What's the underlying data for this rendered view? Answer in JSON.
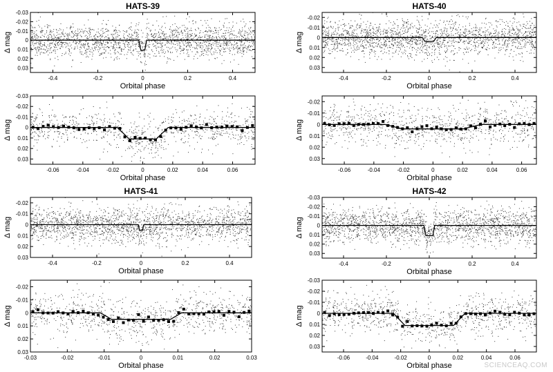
{
  "figure": {
    "watermark": "SCIENCEAQ.COM"
  },
  "chart_data": [
    {
      "type": "scatter",
      "title": "HATS-39",
      "xlabel": "Orbital phase",
      "ylabel": "Δ mag",
      "xlim": [
        -0.5,
        0.5
      ],
      "ylim": [
        -0.03,
        0.035
      ],
      "xticks": [
        -0.4,
        -0.2,
        0,
        0.2,
        0.4
      ],
      "xticklabels": [
        "-0.4",
        "-0.2",
        "0",
        "0.2",
        "0.4"
      ],
      "yticks": [
        -0.03,
        -0.02,
        -0.01,
        0,
        0.01,
        0.02,
        0.03
      ],
      "yticklabels": [
        "-0.03",
        "-0.02",
        "-0.01",
        "0",
        "0.01",
        "0.02",
        "0.03"
      ],
      "model": {
        "depth": 0.011,
        "t14": 0.034,
        "t12": 0.008
      },
      "scatter_sigma": 0.009,
      "binned": false,
      "grid": false
    },
    {
      "type": "scatter",
      "title": "HATS-40",
      "xlabel": "Orbital phase",
      "ylabel": "Δ mag",
      "xlim": [
        -0.5,
        0.5
      ],
      "ylim": [
        -0.025,
        0.035
      ],
      "xticks": [
        -0.4,
        -0.2,
        0,
        0.2,
        0.4
      ],
      "xticklabels": [
        "-0.4",
        "-0.2",
        "0",
        "0.2",
        "0.4"
      ],
      "yticks": [
        -0.02,
        -0.01,
        0,
        0.01,
        0.02,
        0.03
      ],
      "yticklabels": [
        "-0.02",
        "-0.01",
        "0",
        "0.01",
        "0.02",
        "0.03"
      ],
      "model": {
        "depth": 0.004,
        "t14": 0.065,
        "t12": 0.012
      },
      "scatter_sigma": 0.009,
      "binned": false,
      "grid": false
    },
    {
      "type": "scatter",
      "title": "",
      "xlabel": "Orbital phase",
      "ylabel": "Δ mag",
      "xlim": [
        -0.075,
        0.075
      ],
      "ylim": [
        -0.03,
        0.035
      ],
      "xticks": [
        -0.06,
        -0.04,
        -0.02,
        0,
        0.02,
        0.04,
        0.06
      ],
      "xticklabels": [
        "-0.06",
        "-0.04",
        "-0.02",
        "0",
        "0.02",
        "0.04",
        "0.06"
      ],
      "yticks": [
        -0.03,
        -0.02,
        -0.01,
        0,
        0.01,
        0.02,
        0.03
      ],
      "yticklabels": [
        "-0.03",
        "-0.02",
        "-0.01",
        "0",
        "0.01",
        "0.02",
        "0.03"
      ],
      "model": {
        "depth": 0.011,
        "t14": 0.034,
        "t12": 0.008
      },
      "scatter_sigma": 0.009,
      "binned": true,
      "grid": false
    },
    {
      "type": "scatter",
      "title": "",
      "xlabel": "Orbital phase",
      "ylabel": "Δ mag",
      "xlim": [
        -0.075,
        0.07
      ],
      "ylim": [
        -0.025,
        0.035
      ],
      "xticks": [
        -0.06,
        -0.04,
        -0.02,
        0,
        0.02,
        0.04,
        0.06
      ],
      "xticklabels": [
        "-0.06",
        "-0.04",
        "-0.02",
        "0",
        "0.02",
        "0.04",
        "0.06"
      ],
      "yticks": [
        -0.02,
        -0.01,
        0,
        0.01,
        0.02,
        0.03
      ],
      "yticklabels": [
        "-0.02",
        "-0.01",
        "0",
        "0.01",
        "0.02",
        "0.03"
      ],
      "model": {
        "depth": 0.004,
        "t14": 0.065,
        "t12": 0.012
      },
      "scatter_sigma": 0.009,
      "binned": true,
      "grid": false
    },
    {
      "type": "scatter",
      "title": "HATS-41",
      "xlabel": "Orbital phase",
      "ylabel": "Δ mag",
      "xlim": [
        -0.5,
        0.5
      ],
      "ylim": [
        -0.025,
        0.03
      ],
      "xticks": [
        -0.4,
        -0.2,
        0,
        0.2,
        0.4
      ],
      "xticklabels": [
        "-0.4",
        "-0.2",
        "0",
        "0.2",
        "0.4"
      ],
      "yticks": [
        -0.02,
        -0.01,
        0,
        0.01,
        0.02,
        0.03
      ],
      "yticklabels": [
        "-0.02",
        "-0.01",
        "0",
        "0.01",
        "0.02",
        "0.03"
      ],
      "model": {
        "depth": 0.005,
        "t14": 0.022,
        "t12": 0.003
      },
      "scatter_sigma": 0.008,
      "binned": false,
      "grid": false
    },
    {
      "type": "scatter",
      "title": "HATS-42",
      "xlabel": "Orbital phase",
      "ylabel": "Δ mag",
      "xlim": [
        -0.5,
        0.5
      ],
      "ylim": [
        -0.03,
        0.035
      ],
      "xticks": [
        -0.4,
        -0.2,
        0,
        0.2,
        0.4
      ],
      "xticklabels": [
        "-0.4",
        "-0.2",
        "0",
        "0.2",
        "0.4"
      ],
      "yticks": [
        -0.03,
        -0.02,
        -0.01,
        0,
        0.01,
        0.02,
        0.03
      ],
      "yticklabels": [
        "-0.03",
        "-0.02",
        "-0.01",
        "0",
        "0.01",
        "0.02",
        "0.03"
      ],
      "model": {
        "depth": 0.011,
        "t14": 0.05,
        "t12": 0.008
      },
      "scatter_sigma": 0.009,
      "binned": false,
      "grid": false
    },
    {
      "type": "scatter",
      "title": "",
      "xlabel": "Orbital phase",
      "ylabel": "Δ mag",
      "xlim": [
        -0.03,
        0.03
      ],
      "ylim": [
        -0.025,
        0.03
      ],
      "xticks": [
        -0.03,
        -0.02,
        -0.01,
        0,
        0.01,
        0.02,
        0.03
      ],
      "xticklabels": [
        "-0.03",
        "-0.02",
        "-0.01",
        "0",
        "0.01",
        "0.02",
        "0.03"
      ],
      "yticks": [
        -0.02,
        -0.01,
        0,
        0.01,
        0.02,
        0.03
      ],
      "yticklabels": [
        "-0.02",
        "-0.01",
        "0",
        "0.01",
        "0.02",
        "0.03"
      ],
      "model": {
        "depth": 0.005,
        "t14": 0.022,
        "t12": 0.003
      },
      "scatter_sigma": 0.008,
      "binned": true,
      "grid": false
    },
    {
      "type": "scatter",
      "title": "",
      "xlabel": "Orbital phase",
      "ylabel": "Δ mag",
      "xlim": [
        -0.075,
        0.075
      ],
      "ylim": [
        -0.03,
        0.035
      ],
      "xticks": [
        -0.06,
        -0.04,
        -0.02,
        0,
        0.02,
        0.04,
        0.06
      ],
      "xticklabels": [
        "-0.06",
        "-0.04",
        "-0.02",
        "0",
        "0.02",
        "0.04",
        "0.06"
      ],
      "yticks": [
        -0.03,
        -0.02,
        -0.01,
        0,
        0.01,
        0.02,
        0.03
      ],
      "yticklabels": [
        "-0.03",
        "-0.02",
        "-0.01",
        "0",
        "0.01",
        "0.02",
        "0.03"
      ],
      "model": {
        "depth": 0.011,
        "t14": 0.05,
        "t12": 0.008
      },
      "scatter_sigma": 0.009,
      "binned": true,
      "grid": false
    }
  ]
}
